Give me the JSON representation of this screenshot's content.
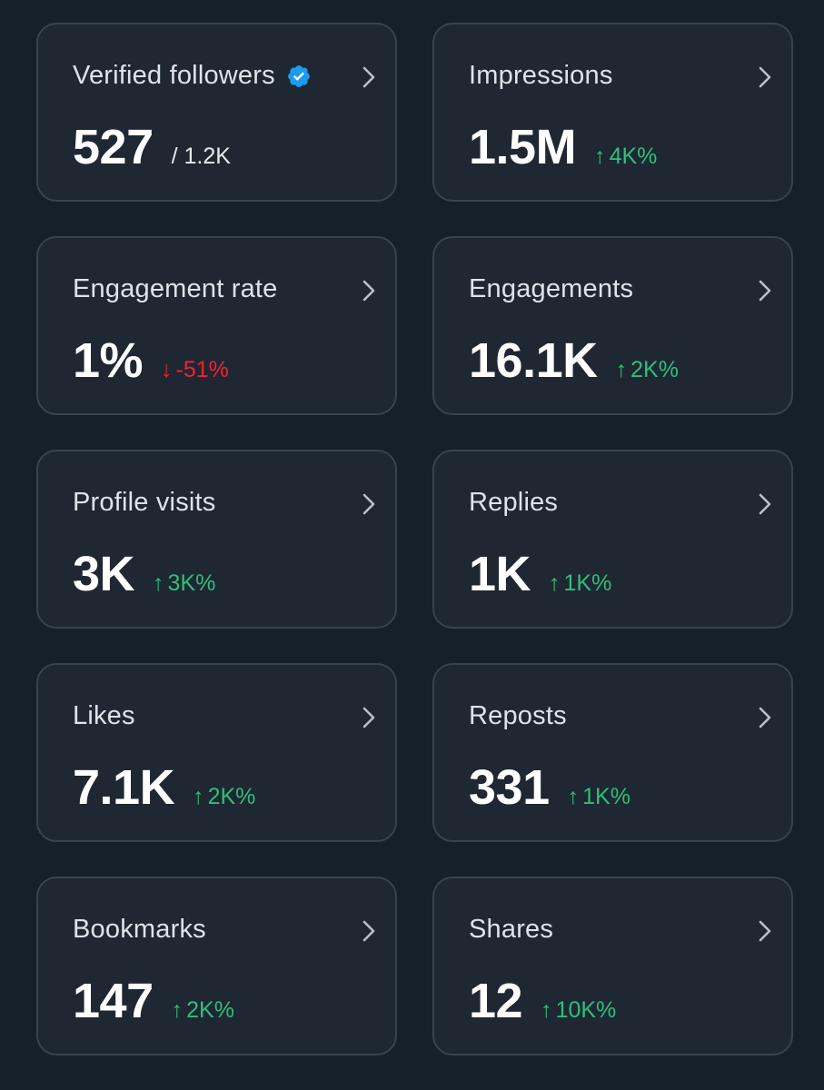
{
  "colors": {
    "background": "#15202b",
    "card": "#1e2732",
    "border": "#38444d",
    "positive": "#2fbf7a",
    "negative": "#f4212e",
    "verified": "#1d9bf0"
  },
  "icons": {
    "verified": "verified-badge-icon",
    "chevron": "chevron-right-icon",
    "up": "arrow-up-icon",
    "down": "arrow-down-icon"
  },
  "cards": [
    {
      "title": "Verified followers",
      "value": "527",
      "sub": "/ 1.2K"
    },
    {
      "title": "Impressions",
      "value": "1.5M",
      "arrow": "↑",
      "delta": "4K%",
      "direction": "up"
    },
    {
      "title": "Engagement rate",
      "value": "1%",
      "arrow": "↓",
      "delta": "-51%",
      "direction": "down"
    },
    {
      "title": "Engagements",
      "value": "16.1K",
      "arrow": "↑",
      "delta": "2K%",
      "direction": "up"
    },
    {
      "title": "Profile visits",
      "value": "3K",
      "arrow": "↑",
      "delta": "3K%",
      "direction": "up"
    },
    {
      "title": "Replies",
      "value": "1K",
      "arrow": "↑",
      "delta": "1K%",
      "direction": "up"
    },
    {
      "title": "Likes",
      "value": "7.1K",
      "arrow": "↑",
      "delta": "2K%",
      "direction": "up"
    },
    {
      "title": "Reposts",
      "value": "331",
      "arrow": "↑",
      "delta": "1K%",
      "direction": "up"
    },
    {
      "title": "Bookmarks",
      "value": "147",
      "arrow": "↑",
      "delta": "2K%",
      "direction": "up"
    },
    {
      "title": "Shares",
      "value": "12",
      "arrow": "↑",
      "delta": "10K%",
      "direction": "up"
    }
  ]
}
